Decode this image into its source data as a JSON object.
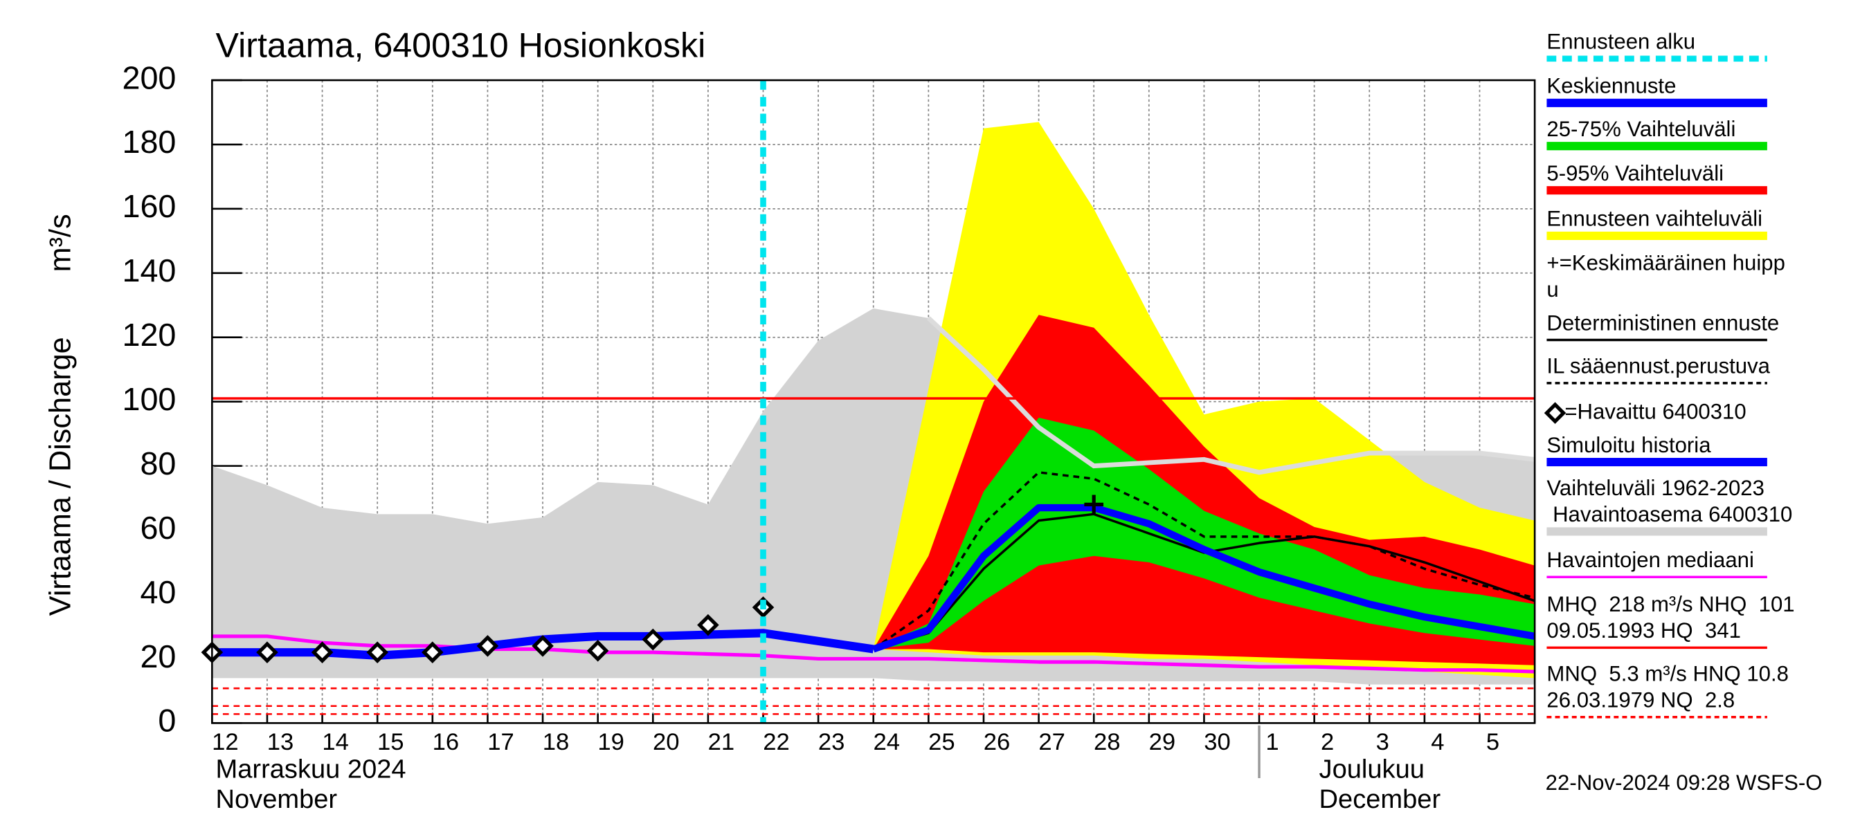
{
  "chart_data": {
    "type": "forecast",
    "title": "Virtaama, 6400310 Hosionkoski",
    "y_label": "Virtaama / Discharge",
    "y_unit": "m³/s",
    "categories": [
      "12",
      "13",
      "14",
      "15",
      "16",
      "17",
      "18",
      "19",
      "20",
      "21",
      "22",
      "23",
      "24",
      "25",
      "26",
      "27",
      "28",
      "29",
      "30",
      "1",
      "2",
      "3",
      "4",
      "5",
      null
    ],
    "months": [
      [
        "Marraskuu 2024",
        "November"
      ],
      [
        "Joulukuu",
        "December"
      ]
    ],
    "ylim": [
      0,
      200
    ],
    "yticks": [
      0,
      20,
      40,
      60,
      80,
      100,
      120,
      140,
      160,
      180,
      200
    ],
    "grid": true,
    "forecast_start": "22",
    "reference_lines": [
      {
        "value": 101,
        "color": "#ff0000",
        "dashed": false
      },
      {
        "value": 10.8,
        "color": "#ff0000",
        "dashed": true
      },
      {
        "value": 5.3,
        "color": "#ff0000",
        "dashed": true
      },
      {
        "value": 2.8,
        "color": "#ff0000",
        "dashed": true
      }
    ],
    "series": [
      {
        "kind": "band",
        "color": "#d3d3d3",
        "upper": [
          80,
          74,
          67,
          65,
          65,
          62,
          64,
          75,
          74,
          68,
          97,
          119,
          129,
          126,
          110,
          92,
          80,
          81,
          82,
          78,
          81,
          84,
          84,
          84,
          82
        ],
        "lower": [
          14,
          14,
          14,
          14,
          14,
          14,
          14,
          14,
          14,
          14,
          14,
          14,
          14,
          13,
          13,
          13,
          13,
          13,
          13,
          13,
          13,
          12,
          12,
          12,
          12
        ]
      },
      {
        "kind": "band",
        "color": "#ffff00",
        "upper": [
          null,
          null,
          null,
          null,
          null,
          null,
          null,
          null,
          null,
          null,
          null,
          null,
          23,
          104,
          185,
          187,
          160,
          127,
          96,
          100,
          101,
          88,
          75,
          67,
          63
        ],
        "lower": [
          null,
          null,
          null,
          null,
          null,
          null,
          null,
          null,
          null,
          null,
          null,
          null,
          23,
          22,
          21,
          21,
          21,
          20,
          20,
          19,
          18,
          17,
          16,
          15,
          14
        ]
      },
      {
        "kind": "band",
        "color": "#ff0000",
        "upper": [
          null,
          null,
          null,
          null,
          null,
          null,
          null,
          null,
          null,
          null,
          null,
          null,
          23,
          52,
          100,
          127,
          123,
          105,
          86,
          70,
          61,
          57,
          58,
          54,
          49
        ],
        "lower": [
          null,
          null,
          null,
          null,
          null,
          null,
          null,
          null,
          null,
          null,
          null,
          null,
          23,
          23,
          22,
          22,
          22,
          21.5,
          21,
          20.5,
          20,
          19.5,
          19,
          18.5,
          18
        ]
      },
      {
        "kind": "band",
        "color": "#00e000",
        "upper": [
          null,
          null,
          null,
          null,
          null,
          null,
          null,
          null,
          null,
          null,
          null,
          null,
          23,
          31,
          72,
          95,
          91,
          79,
          66,
          59,
          54,
          46,
          42,
          40,
          37
        ],
        "lower": [
          null,
          null,
          null,
          null,
          null,
          null,
          null,
          null,
          null,
          null,
          null,
          null,
          23,
          25,
          38,
          49,
          52,
          50,
          45,
          39,
          35,
          31,
          28,
          26,
          24
        ]
      },
      {
        "kind": "line",
        "color": "#ff00ff",
        "width": 3,
        "dashed": false,
        "values": [
          27,
          27,
          25,
          24,
          24,
          23,
          23,
          22,
          22,
          21.5,
          21,
          20,
          20,
          20,
          19.5,
          19,
          19,
          18.5,
          18,
          17.5,
          17.5,
          17,
          16.5,
          16.5,
          16
        ]
      },
      {
        "kind": "line",
        "color": "#000000",
        "width": 2,
        "dashed": true,
        "values": [
          null,
          null,
          null,
          null,
          null,
          null,
          null,
          null,
          null,
          null,
          null,
          null,
          23,
          35,
          62,
          78,
          76,
          68,
          58,
          58,
          58,
          55,
          48,
          43,
          39
        ]
      },
      {
        "kind": "line",
        "color": "#000000",
        "width": 2,
        "dashed": false,
        "values": [
          null,
          null,
          null,
          null,
          null,
          null,
          null,
          null,
          null,
          null,
          null,
          null,
          23,
          28,
          48,
          63,
          65,
          59,
          53,
          56,
          58,
          55,
          50,
          44,
          38
        ]
      },
      {
        "kind": "line",
        "color": "#0000ff",
        "width": 6,
        "dashed": false,
        "values": [
          null,
          null,
          null,
          null,
          null,
          null,
          null,
          null,
          null,
          null,
          null,
          null,
          23,
          29,
          52,
          67,
          67,
          62,
          54,
          47,
          42,
          37,
          33,
          30,
          27
        ]
      },
      {
        "kind": "line",
        "color": "#0000ff",
        "width": 7,
        "dashed": false,
        "values": [
          22,
          22,
          22,
          21,
          22,
          24,
          26,
          27,
          27,
          27.5,
          28,
          25.5,
          23,
          null,
          null,
          null,
          null,
          null,
          null,
          null,
          null,
          null,
          null,
          null,
          null
        ]
      },
      {
        "kind": "diamond",
        "color": "#000000",
        "values": [
          22,
          22,
          22,
          22,
          22,
          24,
          24,
          22.5,
          26,
          30.5,
          36,
          null,
          null,
          null,
          null,
          null,
          null,
          null,
          null,
          null,
          null,
          null,
          null,
          null,
          null
        ]
      },
      {
        "kind": "plus",
        "color": "#000000",
        "values": [
          null,
          null,
          null,
          null,
          null,
          null,
          null,
          null,
          null,
          null,
          null,
          null,
          null,
          null,
          null,
          null,
          68,
          null,
          null,
          null,
          null,
          null,
          null,
          null,
          null
        ]
      }
    ],
    "legend": [
      {
        "lines": [
          "Ennusteen alku"
        ],
        "color": "#00e5ee",
        "style": "dashed"
      },
      {
        "lines": [
          "Keskiennuste"
        ],
        "color": "#0000ff",
        "style": "thick"
      },
      {
        "lines": [
          "25-75% Vaihteluväli"
        ],
        "color": "#00e000",
        "style": "thick"
      },
      {
        "lines": [
          "5-95% Vaihteluväli"
        ],
        "color": "#ff0000",
        "style": "thick"
      },
      {
        "lines": [
          "Ennusteen vaihteluväli"
        ],
        "color": "#ffff00",
        "style": "thick"
      },
      {
        "lines": [
          "+=Keskimääräinen huipp",
          "u"
        ],
        "color": "#000000",
        "style": "none"
      },
      {
        "lines": [
          "Deterministinen ennuste"
        ],
        "color": "#000000",
        "style": "thin"
      },
      {
        "lines": [
          "IL sääennust.perustuva"
        ],
        "color": "#000000",
        "style": "dotted"
      },
      {
        "lines": [
          "=Havaittu 6400310"
        ],
        "color": "#000000",
        "style": "diamond"
      },
      {
        "lines": [
          "Simuloitu historia"
        ],
        "color": "#0000ff",
        "style": "thick"
      },
      {
        "lines": [
          "Vaihteluväli 1962-2023",
          " Havaintoasema 6400310"
        ],
        "color": "#d3d3d3",
        "style": "thick"
      },
      {
        "lines": [
          "Havaintojen mediaani"
        ],
        "color": "#ff00ff",
        "style": "thin"
      },
      {
        "lines": [
          "MHQ  218 m³/s NHQ  101",
          "09.05.1993 HQ  341"
        ],
        "color": "#ff0000",
        "style": "thin"
      },
      {
        "lines": [
          "MNQ  5.3 m³/s HNQ 10.8",
          "26.03.1979 NQ  2.8"
        ],
        "color": "#ff0000",
        "style": "dotted"
      }
    ],
    "timestamp": "22-Nov-2024 09:28 WSFS-O"
  }
}
